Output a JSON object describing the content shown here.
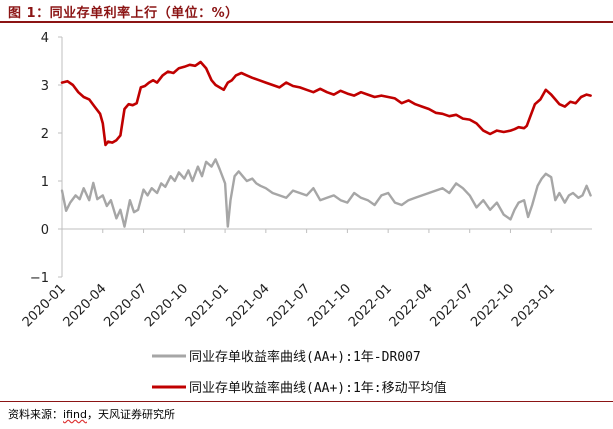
{
  "header": {
    "title_prefix": "图 1：",
    "title_text": "同业存单利率上行（单位：%）"
  },
  "footer": {
    "source_label": "资料来源：",
    "source_ifind": "ifind",
    "source_rest": "，天风证券研究所"
  },
  "chart_data": {
    "type": "line",
    "title": "同业存单利率上行（单位：%）",
    "xlabel": "",
    "ylabel": "",
    "ylim": [
      -1,
      4
    ],
    "yticks": [
      "4",
      "3",
      "2",
      "1",
      "0",
      "−1"
    ],
    "ytick_values": [
      4,
      3,
      2,
      1,
      0,
      -1
    ],
    "x_tick_labels": [
      "2020-01",
      "2020-04",
      "2020-07",
      "2020-10",
      "2021-01",
      "2021-04",
      "2021-07",
      "2021-10",
      "2022-01",
      "2022-04",
      "2022-07",
      "2022-10",
      "2023-01"
    ],
    "x_tick_months": [
      0,
      3,
      6,
      9,
      12,
      15,
      18,
      21,
      24,
      27,
      30,
      33,
      36
    ],
    "x_range_months": [
      0,
      39
    ],
    "grid": false,
    "legend_position": "bottom",
    "series": [
      {
        "name": "同业存单收益率曲线(AA+):1年-DR007",
        "color": "#a6a6a6",
        "x_months": [
          0,
          0.3,
          0.6,
          1.0,
          1.3,
          1.6,
          2.0,
          2.3,
          2.6,
          3.0,
          3.3,
          3.6,
          4.0,
          4.3,
          4.6,
          5.0,
          5.3,
          5.6,
          6.0,
          6.3,
          6.6,
          7.0,
          7.3,
          7.6,
          8.0,
          8.3,
          8.6,
          9.0,
          9.3,
          9.6,
          10.0,
          10.3,
          10.6,
          11.0,
          11.3,
          11.6,
          12.0,
          12.2,
          12.4,
          12.7,
          13.0,
          13.3,
          13.6,
          14.0,
          14.3,
          14.6,
          15.0,
          15.5,
          16.0,
          16.5,
          17.0,
          17.5,
          18.0,
          18.5,
          19.0,
          19.5,
          20.0,
          20.5,
          21.0,
          21.5,
          22.0,
          22.5,
          23.0,
          23.5,
          24.0,
          24.5,
          25.0,
          25.5,
          26.0,
          26.5,
          27.0,
          27.5,
          28.0,
          28.5,
          29.0,
          29.5,
          30.0,
          30.5,
          31.0,
          31.5,
          32.0,
          32.5,
          33.0,
          33.3,
          33.6,
          34.0,
          34.3,
          34.6,
          35.0,
          35.3,
          35.6,
          36.0,
          36.3,
          36.6,
          37.0,
          37.3,
          37.6,
          38.0,
          38.3,
          38.6,
          38.9
        ],
        "values": [
          0.8,
          0.38,
          0.55,
          0.7,
          0.62,
          0.85,
          0.6,
          0.96,
          0.62,
          0.7,
          0.48,
          0.6,
          0.22,
          0.4,
          0.05,
          0.6,
          0.35,
          0.4,
          0.82,
          0.7,
          0.85,
          0.75,
          0.95,
          0.88,
          1.1,
          1.0,
          1.18,
          1.05,
          1.22,
          1.0,
          1.3,
          1.1,
          1.4,
          1.3,
          1.45,
          1.25,
          0.95,
          0.05,
          0.6,
          1.1,
          1.2,
          1.1,
          1.0,
          1.05,
          0.95,
          0.9,
          0.85,
          0.75,
          0.7,
          0.65,
          0.8,
          0.75,
          0.7,
          0.85,
          0.6,
          0.65,
          0.7,
          0.6,
          0.55,
          0.75,
          0.65,
          0.6,
          0.5,
          0.7,
          0.75,
          0.55,
          0.5,
          0.6,
          0.65,
          0.7,
          0.75,
          0.8,
          0.85,
          0.75,
          0.95,
          0.85,
          0.7,
          0.45,
          0.6,
          0.4,
          0.55,
          0.3,
          0.2,
          0.4,
          0.55,
          0.6,
          0.25,
          0.5,
          0.9,
          1.05,
          1.15,
          1.08,
          0.6,
          0.75,
          0.55,
          0.7,
          0.75,
          0.65,
          0.7,
          0.9,
          0.7
        ]
      },
      {
        "name": "同业存单收益率曲线(AA+):1年:移动平均值",
        "color": "#c00000",
        "x_months": [
          0,
          0.4,
          0.8,
          1.2,
          1.6,
          2.0,
          2.4,
          2.8,
          3.0,
          3.2,
          3.4,
          3.7,
          4.0,
          4.3,
          4.6,
          4.9,
          5.2,
          5.5,
          5.8,
          6.1,
          6.4,
          6.7,
          7.0,
          7.4,
          7.8,
          8.2,
          8.6,
          9.0,
          9.4,
          9.8,
          10.2,
          10.6,
          11.0,
          11.3,
          11.6,
          11.9,
          12.2,
          12.5,
          12.8,
          13.2,
          13.6,
          14.0,
          14.5,
          15.0,
          15.5,
          16.0,
          16.5,
          17.0,
          17.5,
          18.0,
          18.5,
          19.0,
          19.5,
          20.0,
          20.5,
          21.0,
          21.5,
          22.0,
          22.5,
          23.0,
          23.5,
          24.0,
          24.5,
          25.0,
          25.5,
          26.0,
          26.5,
          27.0,
          27.5,
          28.0,
          28.5,
          29.0,
          29.5,
          30.0,
          30.5,
          31.0,
          31.5,
          32.0,
          32.5,
          33.0,
          33.3,
          33.6,
          34.0,
          34.2,
          34.4,
          34.8,
          35.2,
          35.6,
          36.0,
          36.3,
          36.6,
          37.0,
          37.4,
          37.8,
          38.2,
          38.6,
          38.9
        ],
        "values": [
          3.05,
          3.08,
          3.0,
          2.85,
          2.75,
          2.7,
          2.55,
          2.4,
          2.2,
          1.75,
          1.82,
          1.8,
          1.85,
          1.95,
          2.5,
          2.6,
          2.58,
          2.62,
          2.95,
          2.98,
          3.05,
          3.1,
          3.05,
          3.2,
          3.28,
          3.25,
          3.35,
          3.38,
          3.42,
          3.4,
          3.48,
          3.35,
          3.1,
          3.0,
          2.95,
          2.9,
          3.05,
          3.1,
          3.2,
          3.25,
          3.2,
          3.15,
          3.1,
          3.05,
          3.0,
          2.95,
          3.05,
          2.98,
          2.95,
          2.9,
          2.85,
          2.92,
          2.85,
          2.8,
          2.88,
          2.82,
          2.78,
          2.85,
          2.8,
          2.75,
          2.78,
          2.75,
          2.72,
          2.62,
          2.68,
          2.6,
          2.55,
          2.5,
          2.42,
          2.4,
          2.35,
          2.38,
          2.3,
          2.28,
          2.2,
          2.05,
          1.98,
          2.05,
          2.02,
          2.05,
          2.08,
          2.12,
          2.1,
          2.15,
          2.3,
          2.6,
          2.7,
          2.9,
          2.8,
          2.7,
          2.6,
          2.55,
          2.65,
          2.62,
          2.75,
          2.8,
          2.78
        ]
      }
    ]
  }
}
